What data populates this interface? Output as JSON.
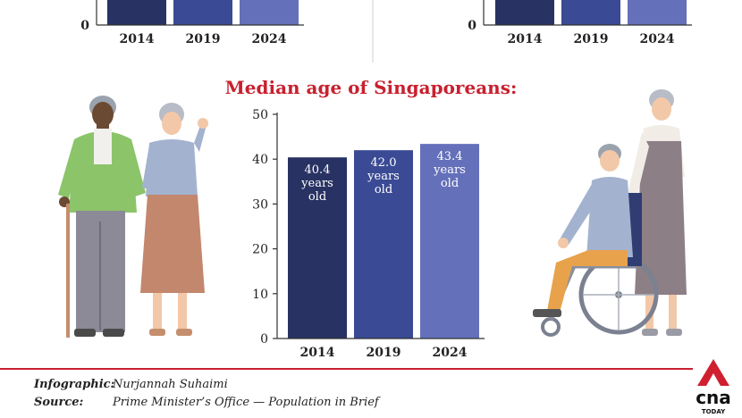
{
  "chart_data": [
    {
      "type": "bar",
      "cropped": true,
      "categories": [
        "2014",
        "2019",
        "2024"
      ],
      "colors": [
        "#283263",
        "#3a4a94",
        "#6470ba"
      ],
      "ylim": [
        0,
        50
      ],
      "yticks": [
        "0"
      ]
    },
    {
      "type": "bar",
      "cropped": true,
      "categories": [
        "2014",
        "2019",
        "2024"
      ],
      "colors": [
        "#283263",
        "#3a4a94",
        "#6470ba"
      ],
      "ylim": [
        0,
        50
      ],
      "yticks": [
        "0"
      ]
    },
    {
      "type": "bar",
      "title": "Median age of Singaporeans:",
      "categories": [
        "2014",
        "2019",
        "2024"
      ],
      "values": [
        40.4,
        42.0,
        43.4
      ],
      "data_labels": [
        [
          "40.4",
          "years",
          "old"
        ],
        [
          "42.0",
          "years",
          "old"
        ],
        [
          "43.4",
          "years",
          "old"
        ]
      ],
      "colors": [
        "#283263",
        "#3a4a94",
        "#6470ba"
      ],
      "ylim": [
        0,
        50
      ],
      "yticks": [
        0,
        10,
        20,
        30,
        40,
        50
      ]
    }
  ],
  "footer": {
    "infographic_label": "Infographic:",
    "infographic_value": "Nurjannah Suhaimi",
    "source_label": "Source:",
    "source_value": "Prime Minister’s Office — Population in Brief"
  },
  "logo": {
    "text": "cna",
    "subtext": "TODAY",
    "color": "#d0202f"
  },
  "colors": {
    "title": "#c8202f",
    "divider": "#c8202f"
  }
}
